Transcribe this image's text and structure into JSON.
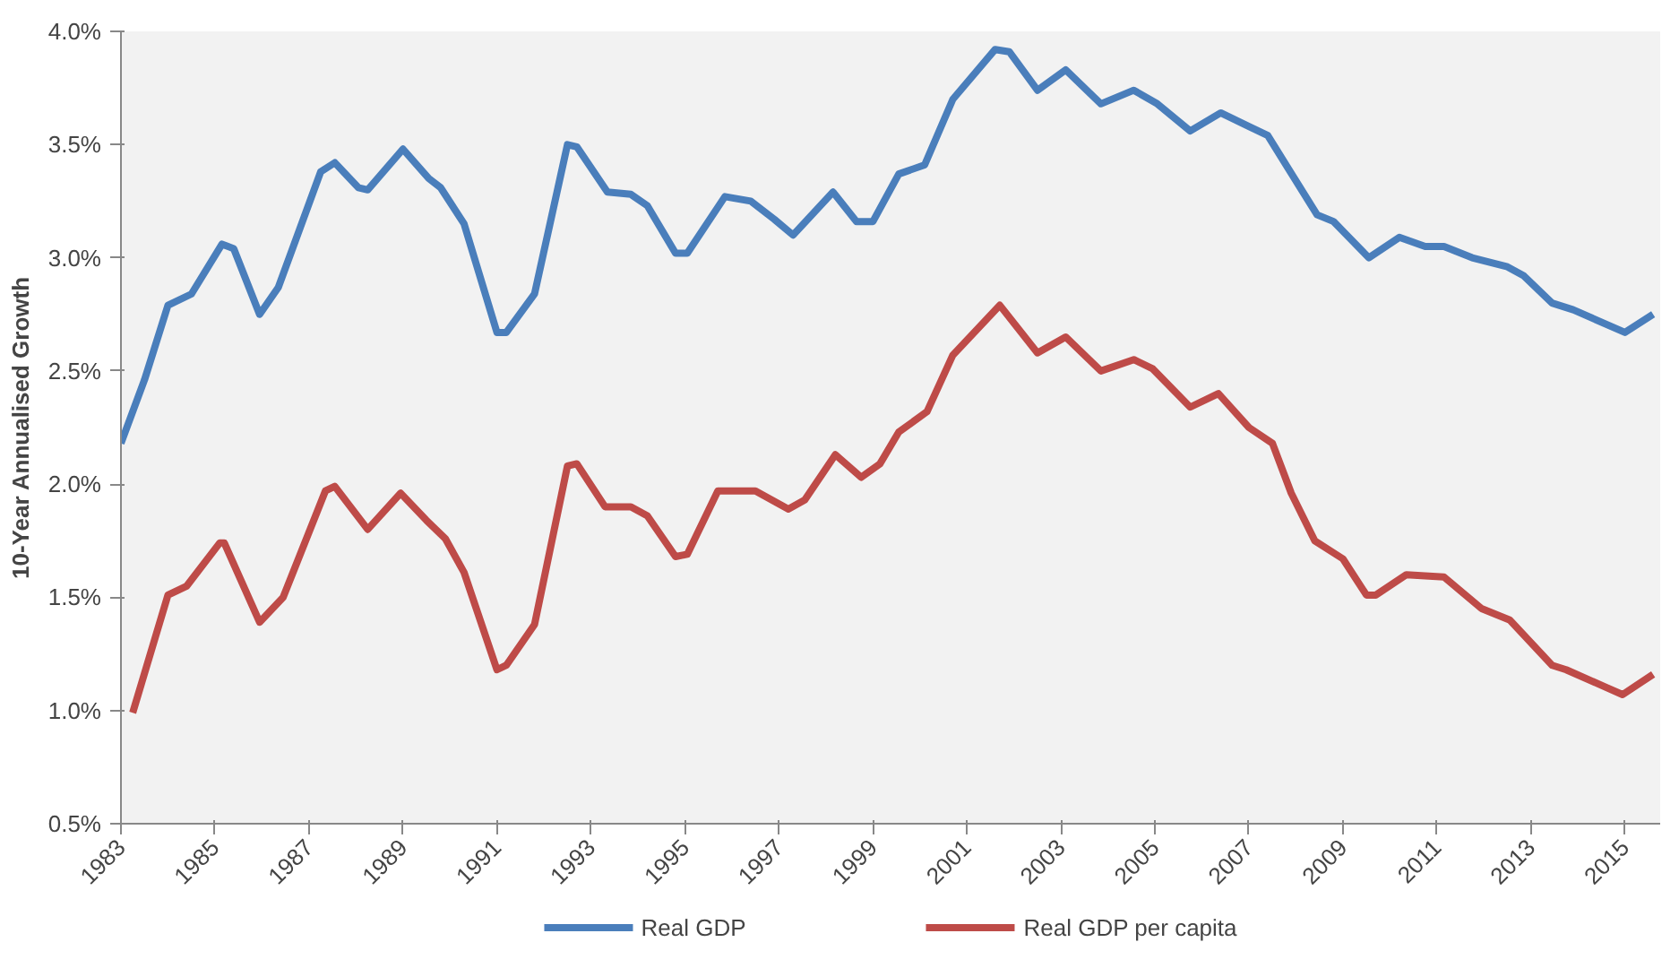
{
  "chart_data": {
    "type": "line",
    "ylabel": "10-Year Annualised Growth",
    "xlim": [
      1983,
      2015.75
    ],
    "xticks": [
      1983,
      1985,
      1987,
      1989,
      1991,
      1993,
      1995,
      1997,
      1999,
      2001,
      2003,
      2005,
      2007,
      2009,
      2011,
      2013,
      2015
    ],
    "ylim": [
      0.5,
      4.0
    ],
    "yticks": [
      {
        "value": 0.5,
        "label": "0.5%"
      },
      {
        "value": 1.0,
        "label": "1.0%"
      },
      {
        "value": 1.5,
        "label": "1.5%"
      },
      {
        "value": 2.0,
        "label": "2.0%"
      },
      {
        "value": 2.5,
        "label": "2.5%"
      },
      {
        "value": 3.0,
        "label": "3.0%"
      },
      {
        "value": 3.5,
        "label": "3.5%"
      },
      {
        "value": 4.0,
        "label": "4.0%"
      }
    ],
    "grid": false,
    "legend": "bottom",
    "marker": "none",
    "line_style": "solid",
    "series": [
      {
        "name": "Real GDP",
        "color": "#4a7ebb",
        "x": [
          1983.0,
          1983.5,
          1984.0,
          1984.5,
          1985.15,
          1985.4,
          1985.95,
          1986.35,
          1987.25,
          1987.55,
          1988.05,
          1988.25,
          1989.0,
          1989.55,
          1989.8,
          1990.3,
          1991.0,
          1991.2,
          1991.8,
          1992.5,
          1992.7,
          1993.35,
          1993.85,
          1994.2,
          1994.8,
          1995.05,
          1995.85,
          1996.4,
          1996.9,
          1997.3,
          1998.15,
          1998.65,
          1999.0,
          1999.55,
          2000.1,
          2000.7,
          2001.6,
          2001.9,
          2002.5,
          2003.1,
          2003.85,
          2004.55,
          2005.05,
          2005.75,
          2006.4,
          2007.0,
          2007.4,
          2007.85,
          2008.45,
          2008.8,
          2009.55,
          2010.2,
          2010.75,
          2011.15,
          2011.75,
          2012.5,
          2012.85,
          2013.45,
          2013.9,
          2015.0,
          2015.6
        ],
        "values": [
          2.18,
          2.46,
          2.79,
          2.84,
          3.06,
          3.04,
          2.75,
          2.87,
          3.38,
          3.42,
          3.31,
          3.3,
          3.48,
          3.35,
          3.31,
          3.15,
          2.67,
          2.67,
          2.84,
          3.5,
          3.49,
          3.29,
          3.28,
          3.23,
          3.02,
          3.02,
          3.27,
          3.25,
          3.17,
          3.1,
          3.29,
          3.16,
          3.16,
          3.37,
          3.41,
          3.7,
          3.92,
          3.91,
          3.74,
          3.83,
          3.68,
          3.74,
          3.68,
          3.56,
          3.64,
          3.58,
          3.54,
          3.39,
          3.19,
          3.16,
          3.0,
          3.09,
          3.05,
          3.05,
          3.0,
          2.96,
          2.92,
          2.8,
          2.77,
          2.67,
          2.75
        ]
      },
      {
        "name": "Real GDP per capita",
        "color": "#be4b48",
        "x": [
          1983.25,
          1984.0,
          1984.4,
          1985.1,
          1985.2,
          1985.95,
          1986.45,
          1987.35,
          1987.55,
          1988.25,
          1988.95,
          1989.5,
          1989.9,
          1990.3,
          1991.0,
          1991.2,
          1991.8,
          1992.5,
          1992.7,
          1993.3,
          1993.85,
          1994.2,
          1994.8,
          1995.05,
          1995.7,
          1996.5,
          1997.2,
          1997.55,
          1998.2,
          1998.75,
          1999.15,
          1999.55,
          2000.15,
          2000.7,
          2001.7,
          2002.5,
          2003.1,
          2003.85,
          2004.55,
          2004.95,
          2005.75,
          2006.35,
          2007.0,
          2007.5,
          2007.9,
          2008.4,
          2009.0,
          2009.5,
          2009.7,
          2010.35,
          2011.15,
          2011.95,
          2012.55,
          2013.45,
          2013.75,
          2014.95,
          2015.6
        ],
        "values": [
          0.99,
          1.51,
          1.55,
          1.74,
          1.74,
          1.39,
          1.5,
          1.97,
          1.99,
          1.8,
          1.96,
          1.84,
          1.76,
          1.61,
          1.18,
          1.2,
          1.38,
          2.08,
          2.09,
          1.9,
          1.9,
          1.86,
          1.68,
          1.69,
          1.97,
          1.97,
          1.89,
          1.93,
          2.13,
          2.03,
          2.09,
          2.23,
          2.32,
          2.57,
          2.79,
          2.58,
          2.65,
          2.5,
          2.55,
          2.51,
          2.34,
          2.4,
          2.25,
          2.18,
          1.96,
          1.75,
          1.67,
          1.51,
          1.51,
          1.6,
          1.59,
          1.45,
          1.4,
          1.2,
          1.18,
          1.07,
          1.16
        ]
      }
    ]
  }
}
